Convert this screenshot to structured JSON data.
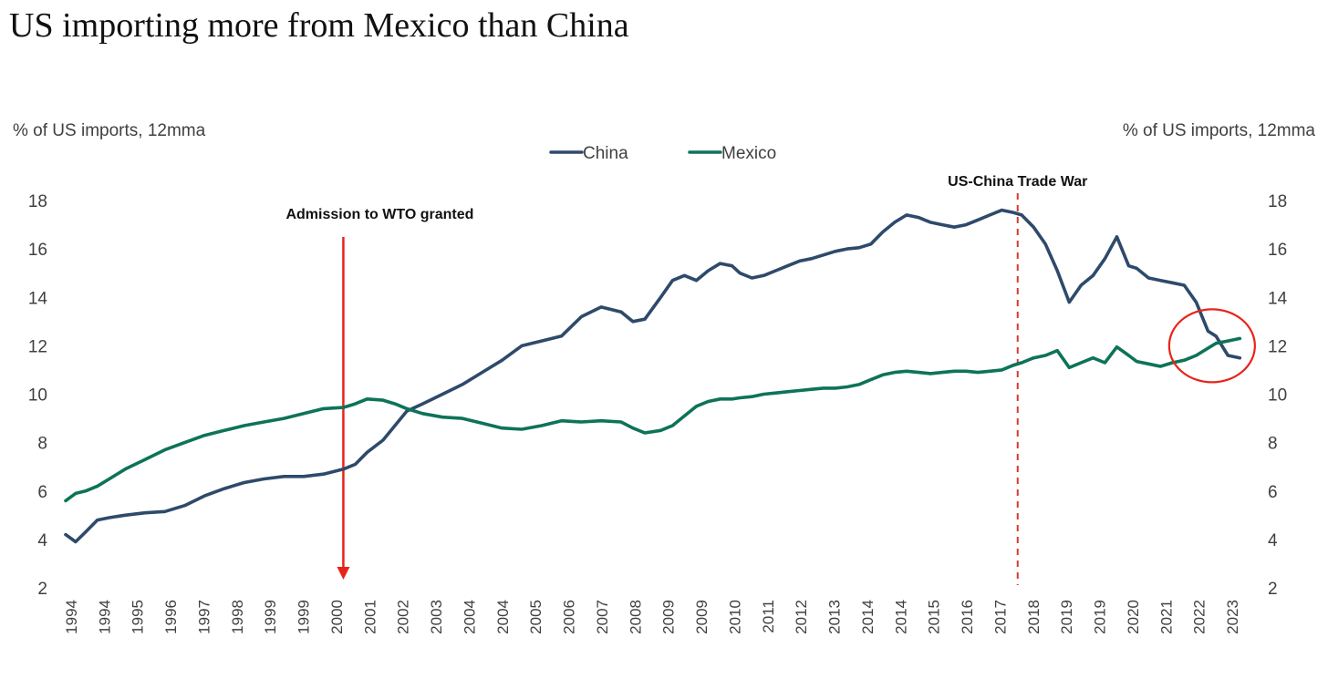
{
  "title": "US importing more from Mexico than China",
  "chart_data": {
    "type": "line",
    "ylabel_left": "% of US imports, 12mma",
    "ylabel_right": "% of US imports, 12mma",
    "ylim": [
      2,
      18
    ],
    "yticks": [
      2,
      4,
      6,
      8,
      10,
      12,
      14,
      16,
      18
    ],
    "grid": false,
    "legend_position": "top-center",
    "x_tick_labels": [
      "1994",
      "1994",
      "1995",
      "1996",
      "1997",
      "1998",
      "1999",
      "1999",
      "2000",
      "2001",
      "2002",
      "2003",
      "2004",
      "2004",
      "2005",
      "2006",
      "2007",
      "2008",
      "2009",
      "2009",
      "2010",
      "2011",
      "2012",
      "2013",
      "2014",
      "2014",
      "2015",
      "2016",
      "2017",
      "2018",
      "2019",
      "2019",
      "2020",
      "2021",
      "2022",
      "2023"
    ],
    "xlim": [
      1994.0,
      2023.8
    ],
    "series": [
      {
        "name": "China",
        "color": "#2e4a6b",
        "x": [
          1994.0,
          1994.25,
          1994.5,
          1994.8,
          1995.1,
          1995.5,
          1996.0,
          1996.5,
          1997.0,
          1997.5,
          1998.0,
          1998.5,
          1999.0,
          1999.5,
          2000.0,
          2000.5,
          2001.0,
          2001.3,
          2001.6,
          2002.0,
          2002.3,
          2002.6,
          2003.0,
          2003.5,
          2004.0,
          2004.5,
          2005.0,
          2005.5,
          2006.0,
          2006.5,
          2007.0,
          2007.5,
          2008.0,
          2008.3,
          2008.6,
          2009.0,
          2009.3,
          2009.6,
          2009.9,
          2010.2,
          2010.5,
          2010.8,
          2011.0,
          2011.3,
          2011.6,
          2011.9,
          2012.2,
          2012.5,
          2012.8,
          2013.1,
          2013.4,
          2013.7,
          2014.0,
          2014.3,
          2014.6,
          2014.9,
          2015.2,
          2015.5,
          2015.8,
          2016.1,
          2016.4,
          2016.7,
          2017.0,
          2017.3,
          2017.6,
          2017.9,
          2018.1,
          2018.4,
          2018.7,
          2019.0,
          2019.3,
          2019.6,
          2019.9,
          2020.2,
          2020.5,
          2020.8,
          2021.0,
          2021.3,
          2021.6,
          2021.9,
          2022.2,
          2022.5,
          2022.8,
          2023.0,
          2023.3,
          2023.6
        ],
        "values": [
          4.2,
          3.9,
          4.3,
          4.8,
          4.9,
          5.0,
          5.1,
          5.15,
          5.4,
          5.8,
          6.1,
          6.35,
          6.5,
          6.6,
          6.6,
          6.7,
          6.9,
          7.1,
          7.6,
          8.1,
          8.7,
          9.3,
          9.6,
          10.0,
          10.4,
          10.9,
          11.4,
          12.0,
          12.2,
          12.4,
          13.2,
          13.6,
          13.4,
          13.0,
          13.1,
          14.0,
          14.7,
          14.9,
          14.7,
          15.1,
          15.4,
          15.3,
          15.0,
          14.8,
          14.9,
          15.1,
          15.3,
          15.5,
          15.6,
          15.75,
          15.9,
          16.0,
          16.05,
          16.2,
          16.7,
          17.1,
          17.4,
          17.3,
          17.1,
          17.0,
          16.9,
          17.0,
          17.2,
          17.4,
          17.6,
          17.5,
          17.4,
          16.9,
          16.2,
          15.1,
          13.8,
          14.5,
          14.9,
          15.6,
          16.5,
          15.3,
          15.2,
          14.8,
          14.7,
          14.6,
          14.5,
          13.8,
          12.6,
          12.4,
          11.6,
          11.5
        ]
      },
      {
        "name": "Mexico",
        "color": "#0e7358",
        "x": [
          1994.0,
          1994.25,
          1994.5,
          1994.8,
          1995.1,
          1995.5,
          1996.0,
          1996.5,
          1997.0,
          1997.5,
          1998.0,
          1998.5,
          1999.0,
          1999.5,
          2000.0,
          2000.5,
          2001.0,
          2001.3,
          2001.6,
          2002.0,
          2002.3,
          2002.6,
          2003.0,
          2003.5,
          2004.0,
          2004.5,
          2005.0,
          2005.5,
          2006.0,
          2006.5,
          2007.0,
          2007.5,
          2008.0,
          2008.3,
          2008.6,
          2009.0,
          2009.3,
          2009.6,
          2009.9,
          2010.2,
          2010.5,
          2010.8,
          2011.0,
          2011.3,
          2011.6,
          2011.9,
          2012.2,
          2012.5,
          2012.8,
          2013.1,
          2013.4,
          2013.7,
          2014.0,
          2014.3,
          2014.6,
          2014.9,
          2015.2,
          2015.5,
          2015.8,
          2016.1,
          2016.4,
          2016.7,
          2017.0,
          2017.3,
          2017.6,
          2017.9,
          2018.1,
          2018.4,
          2018.7,
          2019.0,
          2019.3,
          2019.6,
          2019.9,
          2020.2,
          2020.5,
          2020.8,
          2021.0,
          2021.3,
          2021.6,
          2021.9,
          2022.2,
          2022.5,
          2022.8,
          2023.0,
          2023.3,
          2023.6
        ],
        "values": [
          5.6,
          5.9,
          6.0,
          6.2,
          6.5,
          6.9,
          7.3,
          7.7,
          8.0,
          8.3,
          8.5,
          8.7,
          8.85,
          9.0,
          9.2,
          9.4,
          9.45,
          9.6,
          9.8,
          9.75,
          9.6,
          9.4,
          9.2,
          9.05,
          9.0,
          8.8,
          8.6,
          8.55,
          8.7,
          8.9,
          8.85,
          8.9,
          8.85,
          8.6,
          8.4,
          8.5,
          8.7,
          9.1,
          9.5,
          9.7,
          9.8,
          9.8,
          9.85,
          9.9,
          10.0,
          10.05,
          10.1,
          10.15,
          10.2,
          10.25,
          10.25,
          10.3,
          10.4,
          10.6,
          10.8,
          10.9,
          10.95,
          10.9,
          10.85,
          10.9,
          10.95,
          10.95,
          10.9,
          10.95,
          11.0,
          11.2,
          11.3,
          11.5,
          11.6,
          11.8,
          11.1,
          11.3,
          11.5,
          11.3,
          11.95,
          11.6,
          11.35,
          11.25,
          11.15,
          11.3,
          11.4,
          11.6,
          11.9,
          12.1,
          12.2,
          12.3
        ]
      }
    ],
    "annotations": [
      {
        "text": "Admission to WTO granted",
        "x": 2001.0,
        "type": "arrow",
        "color": "#e8241a"
      },
      {
        "text": "US-China Trade War",
        "x": 2018.0,
        "type": "dashed-line",
        "color": "#d63b2f"
      }
    ],
    "highlight": {
      "type": "circle",
      "center_x": 2022.9,
      "center_y": 12.0,
      "color": "#e8241a"
    }
  }
}
